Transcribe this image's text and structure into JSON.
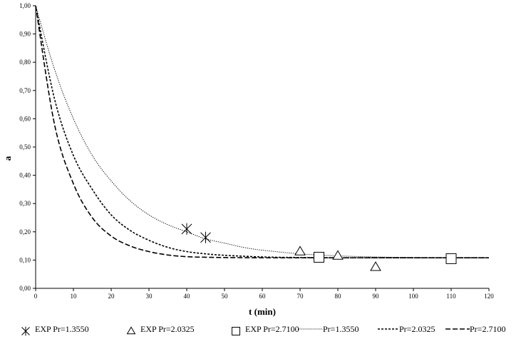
{
  "chart_data": {
    "type": "scatter",
    "xlabel": "t (min)",
    "ylabel": "a",
    "xlim": [
      0,
      120
    ],
    "ylim": [
      0,
      1
    ],
    "x_ticks": [
      "0",
      "10",
      "20",
      "30",
      "40",
      "50",
      "60",
      "70",
      "80",
      "90",
      "100",
      "110",
      "120"
    ],
    "y_ticks": [
      "0,00",
      "0,10",
      "0,20",
      "0,30",
      "0,40",
      "0,50",
      "0,60",
      "0,70",
      "0,80",
      "0,90",
      "1,00"
    ],
    "grid": false,
    "legend_position": "bottom",
    "points_series": [
      {
        "name": "EXP Pr=1.3550",
        "marker": "asterisk",
        "x": [
          40,
          45
        ],
        "y": [
          0.21,
          0.18
        ]
      },
      {
        "name": "EXP Pr=2.0325",
        "marker": "triangle",
        "x": [
          70,
          80,
          90
        ],
        "y": [
          0.13,
          0.115,
          0.075
        ]
      },
      {
        "name": "EXP Pr=2.7100",
        "marker": "square",
        "x": [
          75,
          110
        ],
        "y": [
          0.11,
          0.105
        ]
      }
    ],
    "line_series": [
      {
        "name": "Pr=1.3550",
        "style": "dotted",
        "x": [
          0,
          5,
          10,
          15,
          20,
          25,
          30,
          35,
          40,
          45,
          50,
          55,
          60,
          70,
          80,
          90,
          100,
          110,
          120
        ],
        "y": [
          1.0,
          0.775,
          0.6,
          0.47,
          0.38,
          0.31,
          0.26,
          0.225,
          0.2,
          0.175,
          0.16,
          0.145,
          0.135,
          0.122,
          0.115,
          0.111,
          0.109,
          0.108,
          0.108
        ]
      },
      {
        "name": "Pr=2.0325",
        "style": "short-dash",
        "x": [
          0,
          5,
          10,
          15,
          20,
          25,
          30,
          35,
          40,
          45,
          50,
          60,
          70,
          80,
          90,
          100,
          110,
          120
        ],
        "y": [
          1.0,
          0.67,
          0.47,
          0.35,
          0.26,
          0.205,
          0.17,
          0.145,
          0.13,
          0.122,
          0.117,
          0.111,
          0.109,
          0.108,
          0.108,
          0.108,
          0.108,
          0.108
        ]
      },
      {
        "name": "Pr=2.7100",
        "style": "long-dash",
        "x": [
          0,
          5,
          10,
          15,
          20,
          25,
          30,
          35,
          40,
          45,
          50,
          60,
          70,
          80,
          90,
          100,
          110,
          120
        ],
        "y": [
          1.0,
          0.58,
          0.37,
          0.25,
          0.185,
          0.15,
          0.13,
          0.118,
          0.112,
          0.11,
          0.109,
          0.108,
          0.108,
          0.108,
          0.108,
          0.108,
          0.108,
          0.108
        ]
      }
    ]
  },
  "colors": {
    "axis": "#000000",
    "series": "#000000",
    "background": "#ffffff"
  }
}
